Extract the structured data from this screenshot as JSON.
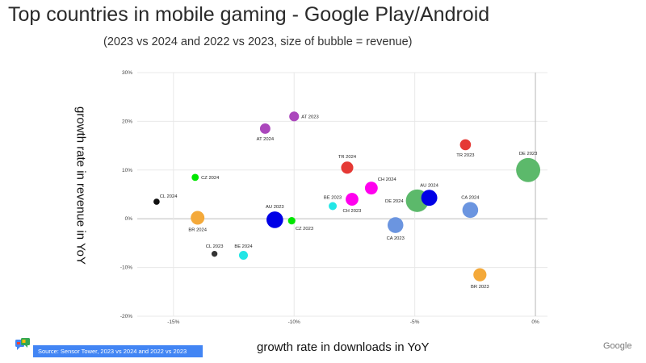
{
  "page": {
    "title": "Top countries in mobile gaming - Google Play/Android",
    "subtitle": "(2023 vs 2024 and 2022 vs 2023, size of bubble = revenue)",
    "source": "Source: Sensor Tower, 2023 vs 2024 and 2022 vs 2023",
    "logo": "Google"
  },
  "chart_data": {
    "type": "scatter",
    "subtype": "bubble",
    "xlabel": "growth rate in downloads in YoY",
    "ylabel": "growth rate in revenue in YoY",
    "xlim": [
      -16.5,
      0.5
    ],
    "ylim": [
      -20,
      30
    ],
    "xticks": [
      -15,
      -10,
      -5,
      0
    ],
    "xtick_labels": [
      "-15%",
      "-10%",
      "-5%",
      "0%"
    ],
    "yticks": [
      -20,
      -10,
      0,
      10,
      20,
      30
    ],
    "ytick_labels": [
      "-20%",
      "-10%",
      "0%",
      "10%",
      "20%",
      "30%"
    ],
    "grid": true,
    "points": [
      {
        "label": "AT 2023",
        "x": -10.0,
        "y": 21.0,
        "size": 2.2,
        "color": "#ab47bc",
        "label_pos": "right"
      },
      {
        "label": "AT 2024",
        "x": -11.2,
        "y": 18.5,
        "size": 2.4,
        "color": "#ab47bc",
        "label_pos": "below"
      },
      {
        "label": "TR 2023",
        "x": -2.9,
        "y": 15.2,
        "size": 2.6,
        "color": "#e53935",
        "label_pos": "below"
      },
      {
        "label": "DE 2023",
        "x": -0.3,
        "y": 10.0,
        "size": 7.0,
        "color": "#5cb96b",
        "label_pos": "above"
      },
      {
        "label": "TR 2024",
        "x": -7.8,
        "y": 10.5,
        "size": 3.0,
        "color": "#e53935",
        "label_pos": "above"
      },
      {
        "label": "CZ 2024",
        "x": -14.1,
        "y": 8.5,
        "size": 1.3,
        "color": "#00e600",
        "label_pos": "right"
      },
      {
        "label": "CH 2024",
        "x": -6.8,
        "y": 6.3,
        "size": 3.2,
        "color": "#ff00ee",
        "label_pos": "right-above"
      },
      {
        "label": "CH 2023",
        "x": -7.6,
        "y": 4.0,
        "size": 3.2,
        "color": "#ff00ee",
        "label_pos": "below"
      },
      {
        "label": "AU 2024",
        "x": -4.4,
        "y": 4.3,
        "size": 4.3,
        "color": "#0000e6",
        "label_pos": "above"
      },
      {
        "label": "DE 2024",
        "x": -4.9,
        "y": 3.7,
        "size": 6.5,
        "color": "#5cb96b",
        "label_pos": "left"
      },
      {
        "label": "CA 2024",
        "x": -2.7,
        "y": 1.8,
        "size": 4.2,
        "color": "#6b95e0",
        "label_pos": "above"
      },
      {
        "label": "BE 2023",
        "x": -8.4,
        "y": 2.6,
        "size": 1.6,
        "color": "#22e6e6",
        "label_pos": "above"
      },
      {
        "label": "CL 2024",
        "x": -15.7,
        "y": 3.5,
        "size": 1.0,
        "color": "#111111",
        "label_pos": "right-above"
      },
      {
        "label": "AU 2023",
        "x": -10.8,
        "y": -0.2,
        "size": 4.5,
        "color": "#0000e6",
        "label_pos": "above"
      },
      {
        "label": "CZ 2023",
        "x": -10.1,
        "y": -0.4,
        "size": 1.4,
        "color": "#00e600",
        "label_pos": "right-below"
      },
      {
        "label": "BR 2024",
        "x": -14.0,
        "y": 0.2,
        "size": 3.5,
        "color": "#f4a93a",
        "label_pos": "below"
      },
      {
        "label": "CA 2023",
        "x": -5.8,
        "y": -1.3,
        "size": 4.2,
        "color": "#6b95e0",
        "label_pos": "below"
      },
      {
        "label": "CL 2023",
        "x": -13.3,
        "y": -7.2,
        "size": 0.9,
        "color": "#333333",
        "label_pos": "above"
      },
      {
        "label": "BE 2024",
        "x": -12.1,
        "y": -7.5,
        "size": 1.9,
        "color": "#22e6e6",
        "label_pos": "above"
      },
      {
        "label": "BR 2023",
        "x": -2.3,
        "y": -11.5,
        "size": 3.3,
        "color": "#f4a93a",
        "label_pos": "below"
      }
    ]
  }
}
